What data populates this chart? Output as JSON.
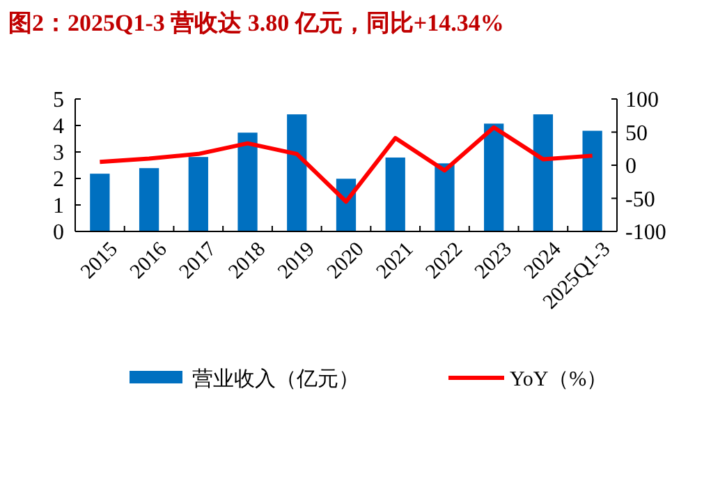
{
  "chart_data": {
    "type": "bar",
    "title": "图2：2025Q1-3 营收达 3.80 亿元，同比+14.34%",
    "categories": [
      "2015",
      "2016",
      "2017",
      "2018",
      "2019",
      "2020",
      "2021",
      "2022",
      "2023",
      "2024",
      "2025Q1-3"
    ],
    "series": [
      {
        "name": "营业收入（亿元）",
        "color": "#0070c0",
        "values": [
          2.18,
          2.39,
          2.81,
          3.73,
          4.42,
          1.99,
          2.79,
          2.57,
          4.07,
          4.42,
          3.8
        ]
      },
      {
        "name": "YoY（%）",
        "type": "line",
        "axis": "y2",
        "color": "#ff0000",
        "values": [
          5,
          10,
          17,
          33,
          17,
          -55,
          41,
          -8,
          57,
          9,
          14.34
        ]
      }
    ],
    "ylim": [
      0,
      5
    ],
    "yticks": [
      0,
      1,
      2,
      3,
      4,
      5
    ],
    "y2lim": [
      -100,
      100
    ],
    "y2ticks": [
      -100,
      -50,
      0,
      50,
      100
    ],
    "legend": "bottom",
    "marker": "none",
    "line_style": "solid",
    "grid": false
  }
}
